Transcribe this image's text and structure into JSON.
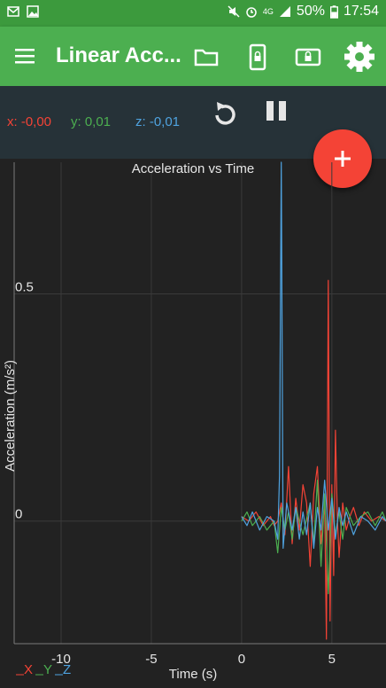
{
  "status_bar": {
    "battery": "50%",
    "time": "17:54",
    "network": "4G",
    "icons": [
      "mail-icon",
      "image-icon",
      "mute-icon",
      "alarm-icon",
      "signal-icon",
      "battery-icon"
    ]
  },
  "app_bar": {
    "title": "Linear Acc...",
    "actions": [
      "folder-icon",
      "phone-lock-icon",
      "screen-lock-icon",
      "settings-icon"
    ]
  },
  "readings": {
    "x": "x: -0,00",
    "y": "y: 0,01",
    "z": "z: -0,01"
  },
  "colors": {
    "x": "#f44336",
    "y": "#4caf50",
    "z": "#4fa3e0",
    "appbar": "#4caf50",
    "statusbar": "#3c9a3d",
    "toolbar": "#263238",
    "background": "#222222",
    "fab": "#f44336"
  },
  "chart_data": {
    "type": "line",
    "title": "Acceleration vs Time",
    "xlabel": "Time (s)",
    "ylabel": "Acceleration (m/s²)",
    "xlim": [
      -12.6,
      8.0
    ],
    "ylim": [
      -0.27,
      0.79
    ],
    "x_ticks": [
      -10,
      -5,
      0,
      5
    ],
    "x_tick_labels": [
      "-10",
      "-5",
      "0",
      "5"
    ],
    "y_ticks": [
      0,
      0.5
    ],
    "y_tick_labels": [
      "0",
      "0.5"
    ],
    "grid": true,
    "legend": "bottom-left",
    "series": [
      {
        "name": "X",
        "color": "#f44336",
        "x": [
          0,
          0.4,
          0.8,
          1.2,
          1.6,
          1.8,
          2.0,
          2.2,
          2.4,
          2.6,
          2.8,
          3.0,
          3.2,
          3.4,
          3.6,
          3.8,
          4.0,
          4.2,
          4.4,
          4.6,
          4.7,
          4.8,
          4.9,
          5.0,
          5.1,
          5.2,
          5.3,
          5.4,
          5.6,
          5.8,
          6.0,
          6.2,
          6.5,
          6.8,
          7.2,
          7.6,
          8.0
        ],
        "y": [
          0.01,
          0.0,
          0.02,
          -0.01,
          0.01,
          -0.01,
          0.0,
          0.04,
          -0.03,
          0.12,
          -0.05,
          0.05,
          -0.02,
          0.08,
          0.04,
          -0.1,
          0.06,
          0.12,
          -0.05,
          0.04,
          -0.26,
          0.53,
          -0.22,
          0.08,
          -0.12,
          0.2,
          0.01,
          -0.08,
          0.04,
          -0.02,
          0.01,
          0.03,
          -0.01,
          0.02,
          0.0,
          0.01,
          0.0
        ]
      },
      {
        "name": "Y",
        "color": "#4caf50",
        "x": [
          0,
          0.3,
          0.6,
          1.0,
          1.4,
          1.8,
          2.0,
          2.2,
          2.4,
          2.6,
          2.8,
          3.0,
          3.4,
          3.8,
          4.0,
          4.2,
          4.4,
          4.6,
          4.8,
          5.0,
          5.2,
          5.4,
          5.6,
          5.8,
          6.2,
          6.6,
          7.0,
          7.4,
          7.8,
          8.0
        ],
        "y": [
          0.0,
          0.02,
          -0.01,
          0.01,
          -0.02,
          0.0,
          -0.07,
          0.03,
          -0.02,
          0.02,
          -0.04,
          0.03,
          -0.03,
          0.04,
          -0.05,
          0.09,
          -0.1,
          0.06,
          -0.16,
          0.06,
          -0.03,
          0.02,
          -0.04,
          0.03,
          -0.01,
          0.01,
          0.02,
          -0.01,
          0.02,
          0.0
        ]
      },
      {
        "name": "Z",
        "color": "#4fa3e0",
        "x": [
          0,
          0.3,
          0.6,
          1.0,
          1.4,
          1.8,
          2.0,
          2.1,
          2.2,
          2.3,
          2.5,
          2.8,
          3.0,
          3.2,
          3.4,
          3.6,
          3.8,
          4.0,
          4.2,
          4.4,
          4.6,
          4.8,
          5.0,
          5.2,
          5.4,
          5.6,
          5.8,
          6.2,
          6.6,
          7.0,
          7.4,
          7.8,
          8.0
        ],
        "y": [
          0.01,
          -0.01,
          0.02,
          -0.02,
          0.01,
          0.0,
          -0.04,
          0.1,
          0.79,
          -0.06,
          0.04,
          -0.02,
          0.03,
          -0.04,
          0.02,
          -0.03,
          0.04,
          -0.06,
          0.03,
          -0.02,
          0.09,
          -0.02,
          0.05,
          -0.04,
          0.03,
          -0.01,
          0.02,
          -0.03,
          0.01,
          0.0,
          -0.02,
          0.01,
          0.0
        ]
      }
    ]
  }
}
